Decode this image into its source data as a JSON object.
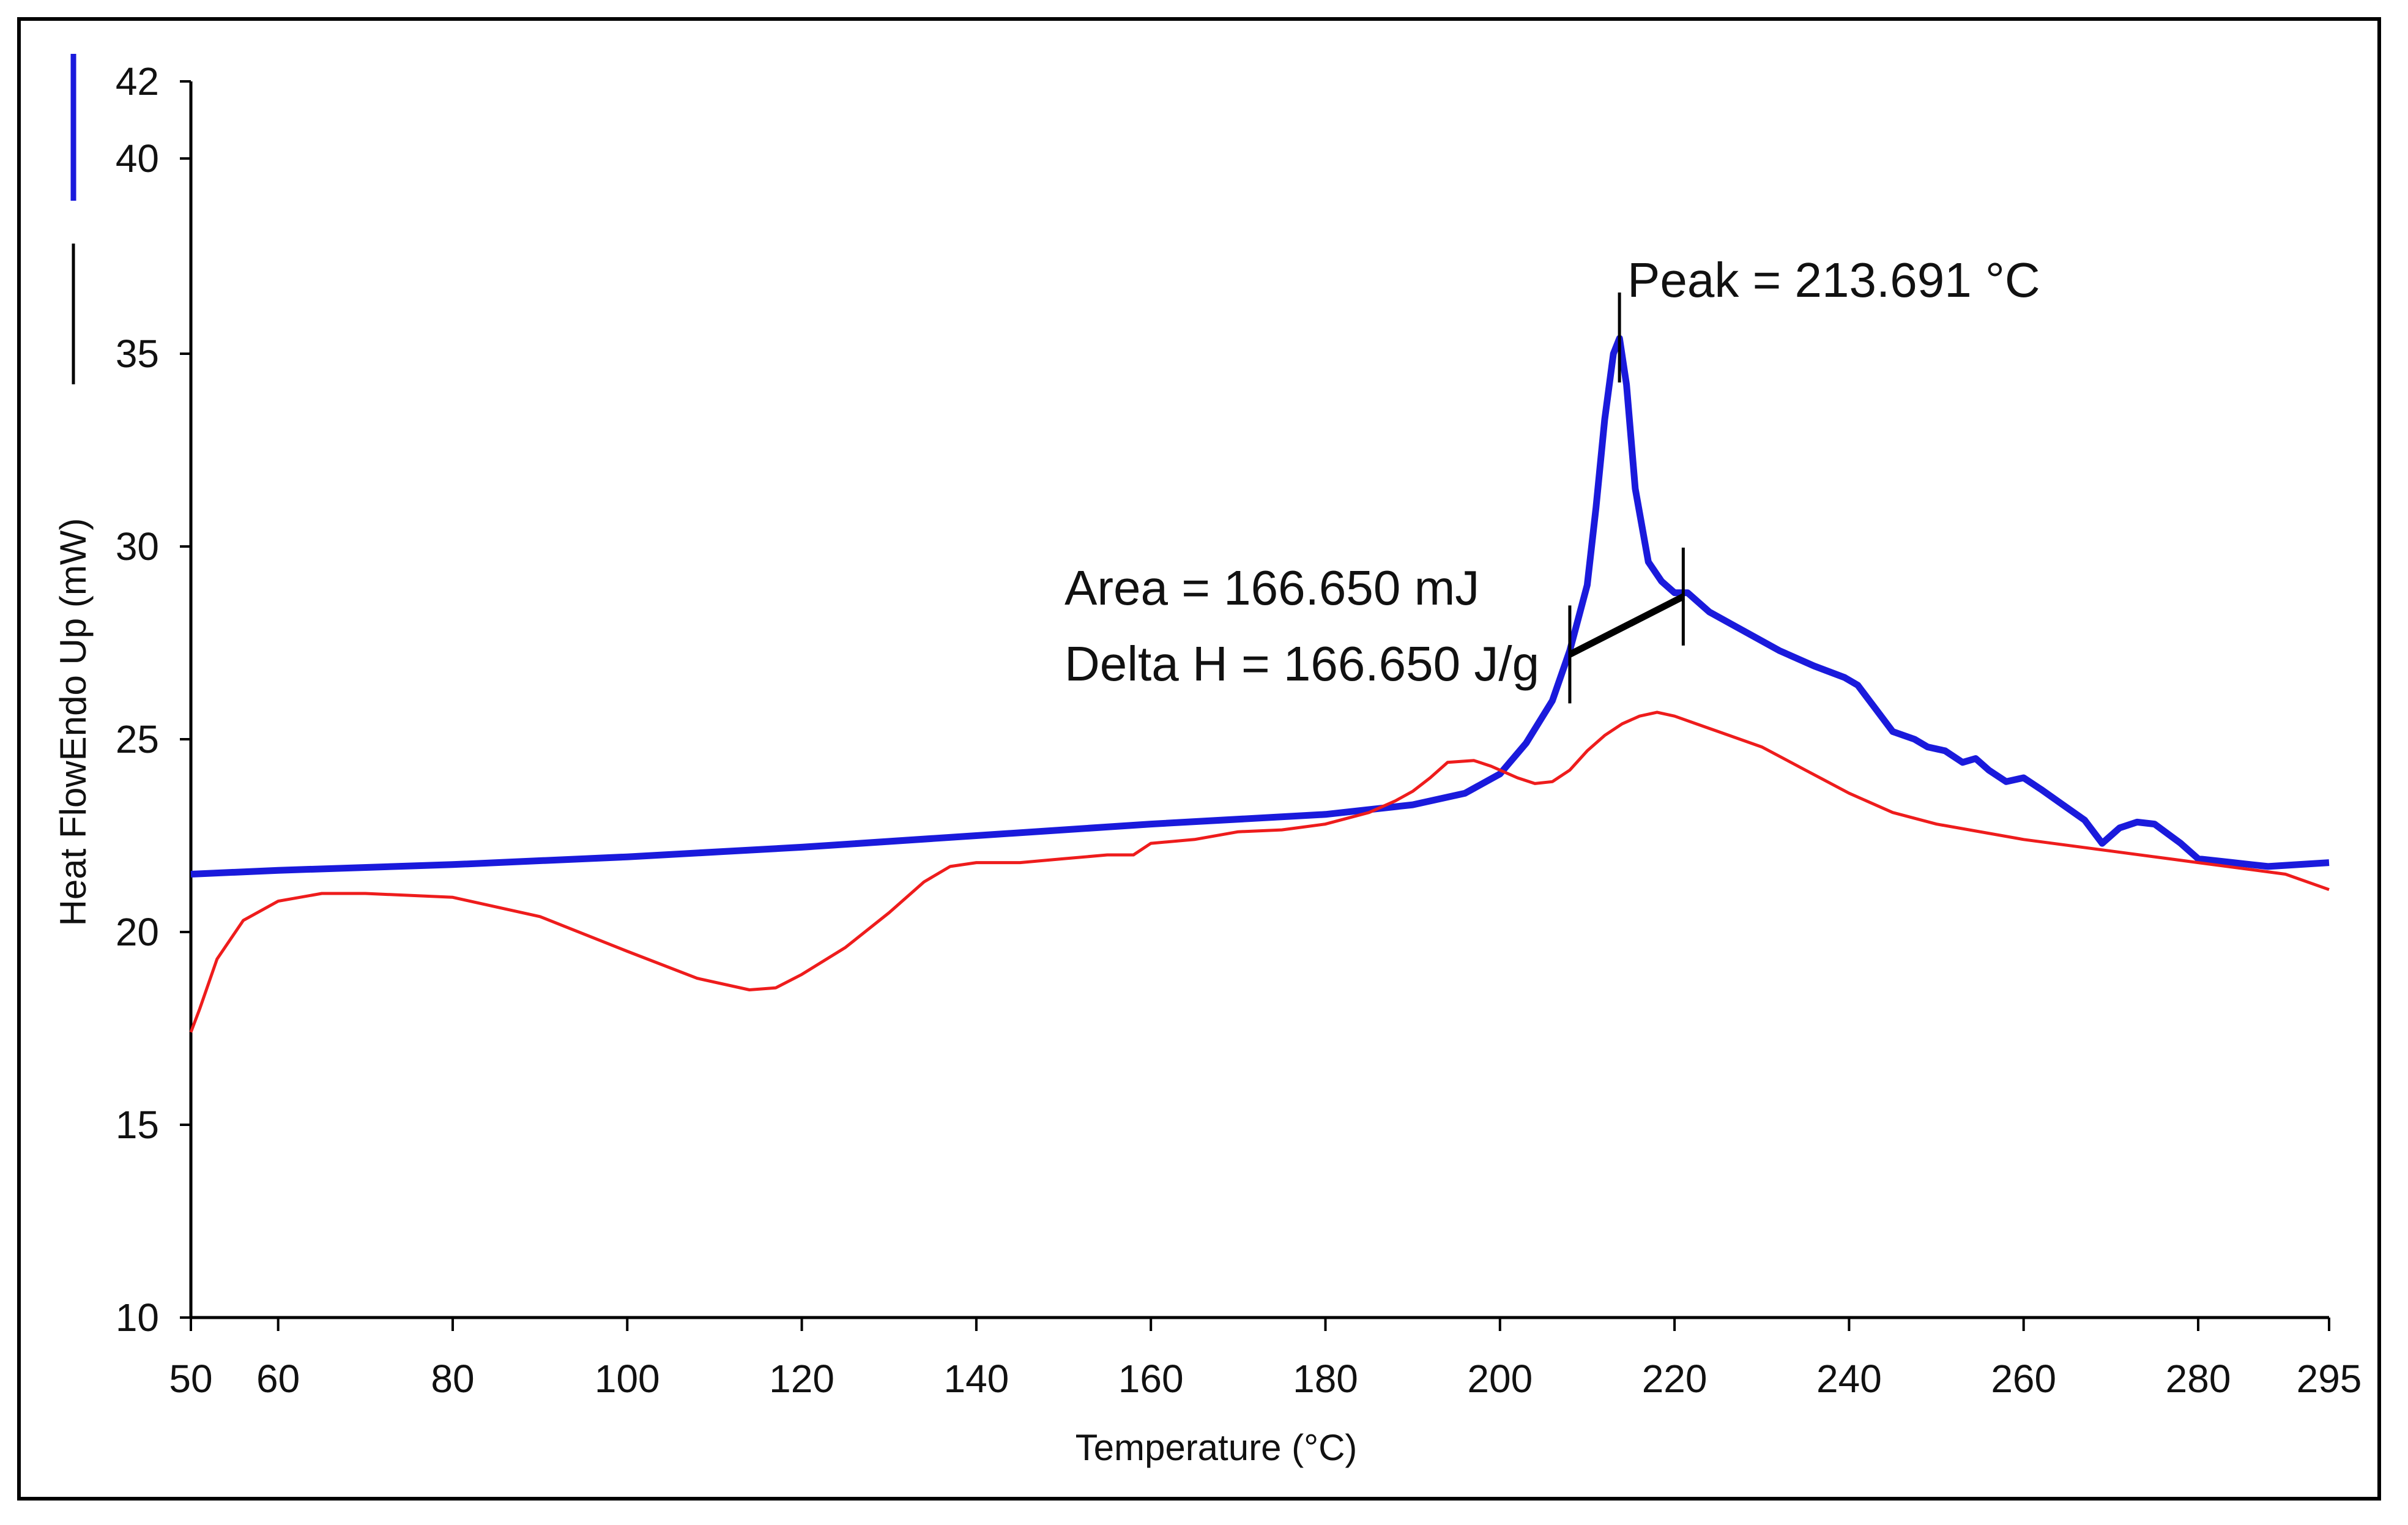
{
  "chart_data": {
    "type": "line",
    "title": "",
    "xlabel": "Temperature (°C)",
    "ylabel": "Heat FlowEndo Up (mW)",
    "xlim": [
      50,
      295
    ],
    "ylim": [
      10,
      42
    ],
    "x_ticks": [
      50,
      60,
      80,
      100,
      120,
      140,
      160,
      180,
      200,
      220,
      240,
      260,
      280,
      295
    ],
    "y_ticks": [
      10,
      15,
      20,
      25,
      30,
      35,
      40,
      42
    ],
    "y_axis_break": [
      36,
      40
    ],
    "colors": {
      "blue": "#1a1adc",
      "red": "#ee1c1c",
      "baseline": "#000000"
    },
    "series": [
      {
        "name": "blue",
        "x": [
          50,
          60,
          80,
          100,
          120,
          140,
          160,
          180,
          190,
          196,
          200,
          203,
          206,
          208,
          210,
          211,
          212,
          213,
          213.7,
          214.5,
          215.5,
          217,
          218.5,
          220,
          221.5,
          224,
          228,
          232,
          236,
          239.5,
          241,
          243,
          245,
          247.5,
          249,
          251,
          253,
          254.5,
          256,
          258,
          260,
          262,
          264.5,
          267,
          269,
          271,
          273,
          275,
          278,
          280,
          284,
          288,
          295
        ],
        "values": [
          21.5,
          21.6,
          21.75,
          21.95,
          22.2,
          22.5,
          22.8,
          23.05,
          23.3,
          23.6,
          24.1,
          24.9,
          26.0,
          27.3,
          29.0,
          31.0,
          33.3,
          35.0,
          35.4,
          34.2,
          31.5,
          29.6,
          29.1,
          28.8,
          28.8,
          28.3,
          27.8,
          27.3,
          26.9,
          26.6,
          26.4,
          25.8,
          25.2,
          25.0,
          24.8,
          24.7,
          24.4,
          24.5,
          24.2,
          23.9,
          24.0,
          23.7,
          23.3,
          22.9,
          22.3,
          22.7,
          22.85,
          22.8,
          22.3,
          21.9,
          21.8,
          21.7,
          21.8
        ]
      },
      {
        "name": "red",
        "x": [
          50,
          51,
          53,
          56,
          60,
          65,
          70,
          80,
          90,
          100,
          108,
          114,
          117,
          120,
          125,
          130,
          134,
          137,
          140,
          145,
          150,
          155,
          158,
          160,
          165,
          170,
          175,
          180,
          185,
          188,
          190,
          192,
          194,
          197,
          199,
          202,
          204,
          206,
          208,
          210,
          212,
          214,
          216,
          218,
          220,
          225,
          230,
          235,
          240,
          245,
          250,
          260,
          270,
          280,
          290,
          295
        ],
        "values": [
          17.4,
          18.0,
          19.3,
          20.3,
          20.8,
          21.0,
          21.0,
          20.9,
          20.4,
          19.5,
          18.8,
          18.5,
          18.55,
          18.9,
          19.6,
          20.5,
          21.3,
          21.7,
          21.8,
          21.8,
          21.9,
          22.0,
          22.0,
          22.3,
          22.4,
          22.6,
          22.65,
          22.8,
          23.1,
          23.4,
          23.65,
          24.0,
          24.4,
          24.45,
          24.3,
          24.0,
          23.85,
          23.9,
          24.2,
          24.7,
          25.1,
          25.4,
          25.6,
          25.7,
          25.6,
          25.2,
          24.8,
          24.2,
          23.6,
          23.1,
          22.8,
          22.4,
          22.1,
          21.8,
          21.5,
          21.1
        ]
      }
    ],
    "annotations": {
      "peak_label": "Peak = 213.691 °C",
      "area_label": "Area = 166.650 mJ",
      "delta_h_label": "Delta H = 166.650 J/g",
      "peak_x": 213.691,
      "baseline_start": [
        208,
        27.2
      ],
      "baseline_end": [
        221,
        28.7
      ]
    }
  }
}
